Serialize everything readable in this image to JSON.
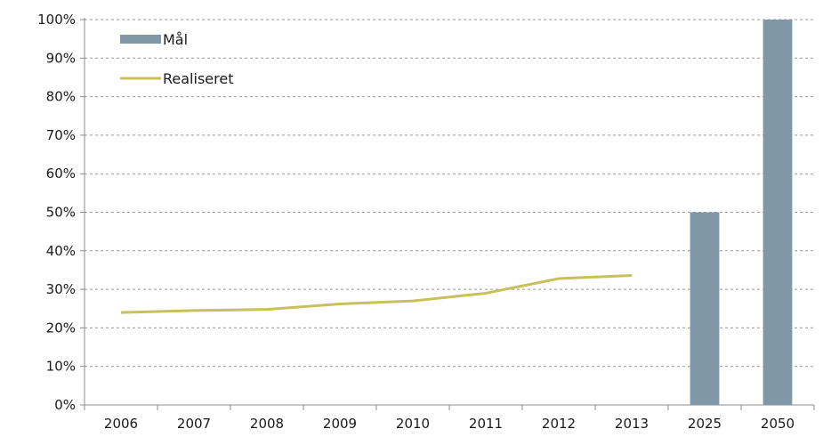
{
  "chart_data": {
    "type": "bar",
    "categories": [
      "2006",
      "2007",
      "2008",
      "2009",
      "2010",
      "2011",
      "2012",
      "2013",
      "2025",
      "2050"
    ],
    "series": [
      {
        "name": "Mål",
        "kind": "bar",
        "color": "#7f97a7",
        "values": [
          null,
          null,
          null,
          null,
          null,
          null,
          null,
          null,
          50,
          100
        ]
      },
      {
        "name": "Realiseret",
        "kind": "line",
        "color": "#c8c05a",
        "values": [
          24,
          24.5,
          24.8,
          26.2,
          27,
          29,
          32.8,
          33.6,
          null,
          null
        ]
      }
    ],
    "ylim": [
      0,
      100
    ],
    "yticks": [
      0,
      10,
      20,
      30,
      40,
      50,
      60,
      70,
      80,
      90,
      100
    ],
    "ytick_suffix": "%",
    "grid": true,
    "legend": "top-left"
  }
}
